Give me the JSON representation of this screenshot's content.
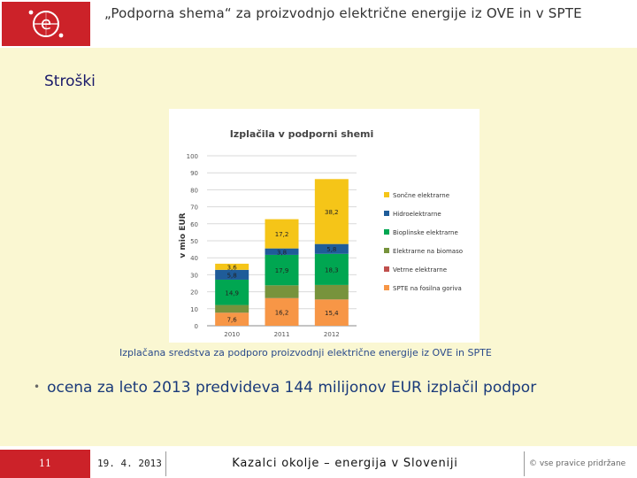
{
  "header": {
    "title": "„Podporna shema“ za proizvodnjo električne energije iz OVE in v SPTE"
  },
  "section": {
    "title": "Stroški"
  },
  "caption": "Izplačana sredstva za podporo proizvodnji električne energije iz OVE in SPTE",
  "bullet": "ocena za leto 2013 predvideva 144 milijonov EUR izplačil podpor",
  "footer": {
    "page": "11",
    "date": "19. 4. 2013",
    "center": "Kazalci okolje – energija v Sloveniji",
    "right": "© vse pravice pridržane"
  },
  "colors": {
    "brand": "#cc2229",
    "background": "#faf7d2"
  },
  "chart_data": {
    "type": "bar",
    "stacked": true,
    "title": "Izplačila v podporni shemi",
    "ylabel": "v mio EUR",
    "xlabel": "",
    "ylim": [
      0,
      100
    ],
    "yticks": [
      0,
      10,
      20,
      30,
      40,
      50,
      60,
      70,
      80,
      90,
      100
    ],
    "grid": true,
    "legend_position": "right",
    "categories": [
      "2010",
      "2011",
      "2012"
    ],
    "series": [
      {
        "name": "SPTE na fosilna goriva",
        "color": "#f79646",
        "values": [
          7.6,
          16.2,
          15.4
        ],
        "labels": [
          "7,6",
          "16,2",
          "15,4"
        ]
      },
      {
        "name": "Vetrne elektrarne",
        "color": "#c0504d",
        "values": [
          0.1,
          0.1,
          0.1
        ],
        "labels": [
          "",
          "",
          ""
        ]
      },
      {
        "name": "Elektrarne na biomaso",
        "color": "#77933c",
        "values": [
          4.5,
          7.5,
          8.5
        ],
        "labels": [
          "",
          "",
          ""
        ]
      },
      {
        "name": "Bioplinske elektrarne",
        "color": "#00a651",
        "values": [
          14.9,
          17.9,
          18.3
        ],
        "labels": [
          "14,9",
          "17,9",
          "18,3"
        ]
      },
      {
        "name": "Hidroelektrarne",
        "color": "#1f5c99",
        "values": [
          5.8,
          3.8,
          5.8
        ],
        "labels": [
          "5,8",
          "3,8",
          "5,8"
        ]
      },
      {
        "name": "Sončne elektrarne",
        "color": "#f5c518",
        "values": [
          3.6,
          17.2,
          38.2
        ],
        "labels": [
          "3,6",
          "17,2",
          "38,2"
        ]
      }
    ],
    "legend_order": [
      "Sončne elektrarne",
      "Hidroelektrarne",
      "Bioplinske elektrarne",
      "Elektrarne na biomaso",
      "Vetrne elektrarne",
      "SPTE na fosilna goriva"
    ]
  }
}
